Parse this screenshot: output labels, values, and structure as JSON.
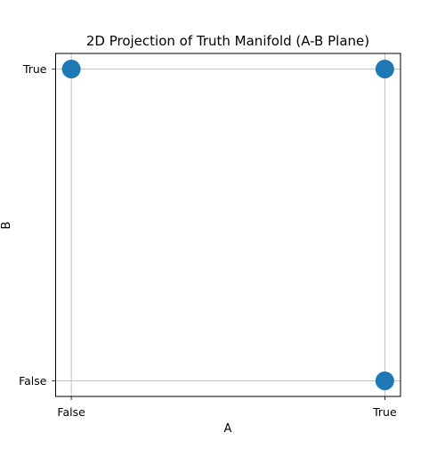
{
  "chart_data": {
    "type": "scatter",
    "title": "2D Projection of Truth Manifold (A-B Plane)",
    "xlabel": "A",
    "ylabel": "B",
    "x_categories": [
      "False",
      "True"
    ],
    "y_categories": [
      "False",
      "True"
    ],
    "xlim": [
      -0.05,
      1.05
    ],
    "ylim": [
      -0.05,
      1.05
    ],
    "grid": true,
    "points": [
      {
        "x": 0,
        "y": 1
      },
      {
        "x": 1,
        "y": 1
      },
      {
        "x": 1,
        "y": 0
      }
    ],
    "marker_color": "#1f77b4"
  }
}
